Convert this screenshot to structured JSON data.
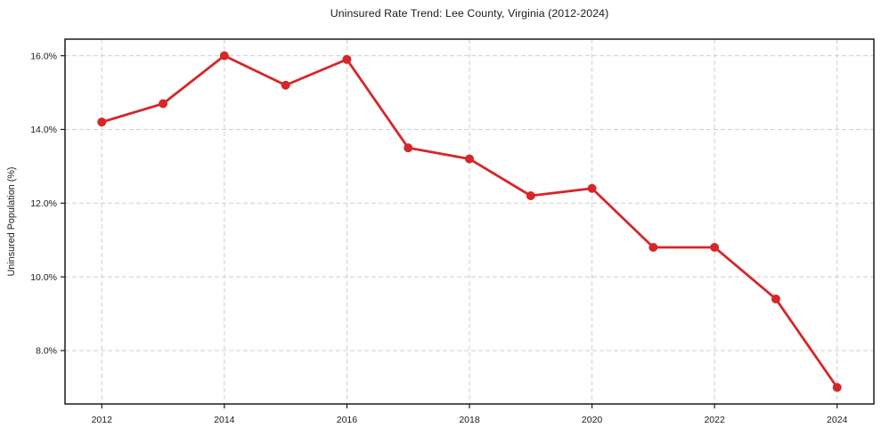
{
  "chart_data": {
    "type": "line",
    "title": "Uninsured Rate Trend: Lee County, Virginia (2012-2024)",
    "xlabel": "",
    "ylabel": "Uninsured Population (%)",
    "x": [
      2012,
      2013,
      2014,
      2015,
      2016,
      2017,
      2018,
      2019,
      2020,
      2021,
      2022,
      2023,
      2024
    ],
    "values": [
      14.2,
      14.7,
      16.0,
      15.2,
      15.9,
      13.5,
      13.2,
      12.2,
      12.4,
      10.8,
      10.8,
      9.4,
      7.0
    ],
    "xlim": [
      2011.4,
      2024.6
    ],
    "ylim": [
      6.55,
      16.45
    ],
    "xticks": {
      "values": [
        2012,
        2014,
        2016,
        2018,
        2020,
        2022,
        2024
      ],
      "labels": [
        "2012",
        "2014",
        "2016",
        "2018",
        "2020",
        "2022",
        "2024"
      ]
    },
    "yticks": {
      "values": [
        8,
        10,
        12,
        14,
        16
      ],
      "labels": [
        "8.0%",
        "10.0%",
        "12.0%",
        "14.0%",
        "16.0%"
      ]
    },
    "grid": true,
    "grid_style": "dashed",
    "legend": "none",
    "colors": {
      "line": "#d62728",
      "marker": "#d62728",
      "grid": "#cfcfcf",
      "axis": "#1a1a1a",
      "background": "#ffffff"
    }
  }
}
